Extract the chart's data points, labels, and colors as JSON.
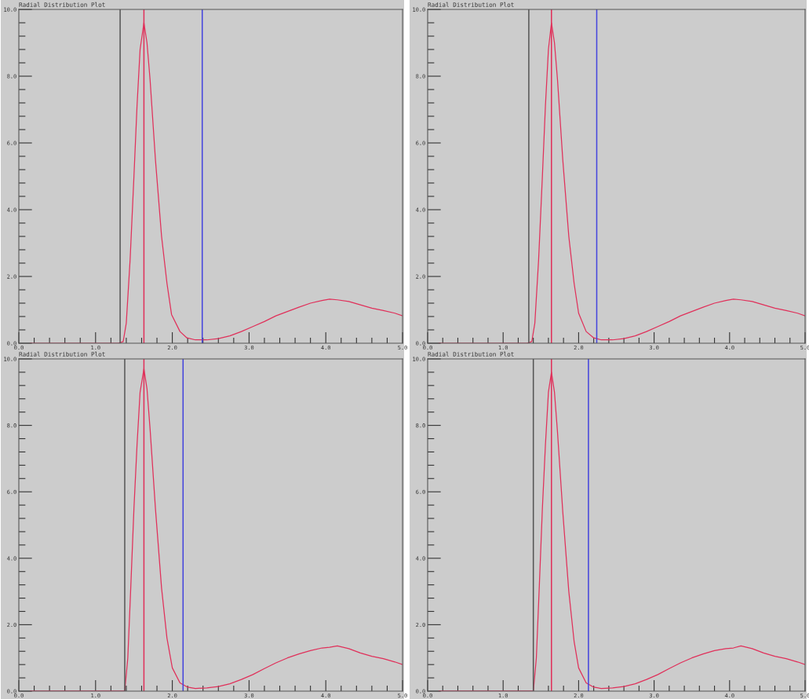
{
  "chart_data": [
    {
      "type": "line",
      "title": "Radial Distribution Plot",
      "xlim": [
        0,
        5
      ],
      "ylim": [
        0,
        10
      ],
      "grid": false,
      "marker": "none",
      "line_style": "solid",
      "xticks": [
        {
          "value": 0,
          "label": "0.0"
        },
        {
          "value": 0.2,
          "label": null
        },
        {
          "value": 0.4,
          "label": null
        },
        {
          "value": 0.6,
          "label": null
        },
        {
          "value": 0.8,
          "label": null
        },
        {
          "value": 1,
          "label": "1.0"
        },
        {
          "value": 1.2,
          "label": null
        },
        {
          "value": 1.4,
          "label": null
        },
        {
          "value": 1.6,
          "label": null
        },
        {
          "value": 1.8,
          "label": null
        },
        {
          "value": 2,
          "label": "2.0"
        },
        {
          "value": 2.2,
          "label": null
        },
        {
          "value": 2.4,
          "label": null
        },
        {
          "value": 2.6,
          "label": null
        },
        {
          "value": 2.8,
          "label": null
        },
        {
          "value": 3,
          "label": "3.0"
        },
        {
          "value": 3.2,
          "label": null
        },
        {
          "value": 3.4,
          "label": null
        },
        {
          "value": 3.6,
          "label": null
        },
        {
          "value": 3.8,
          "label": null
        },
        {
          "value": 4,
          "label": "4.0"
        },
        {
          "value": 4.2,
          "label": null
        },
        {
          "value": 4.4,
          "label": null
        },
        {
          "value": 4.6,
          "label": null
        },
        {
          "value": 4.8,
          "label": null
        },
        {
          "value": 5,
          "label": "5.0"
        }
      ],
      "yticks": [
        {
          "value": 0,
          "label": "0.0"
        },
        {
          "value": 0.4,
          "label": null
        },
        {
          "value": 0.8,
          "label": null
        },
        {
          "value": 1.2,
          "label": null
        },
        {
          "value": 1.6,
          "label": null
        },
        {
          "value": 2,
          "label": "2.0"
        },
        {
          "value": 2.4,
          "label": null
        },
        {
          "value": 2.8,
          "label": null
        },
        {
          "value": 3.2,
          "label": null
        },
        {
          "value": 3.6,
          "label": null
        },
        {
          "value": 4,
          "label": "4.0"
        },
        {
          "value": 4.4,
          "label": null
        },
        {
          "value": 4.8,
          "label": null
        },
        {
          "value": 5.2,
          "label": null
        },
        {
          "value": 5.6,
          "label": null
        },
        {
          "value": 6,
          "label": "6.0"
        },
        {
          "value": 6.4,
          "label": null
        },
        {
          "value": 6.8,
          "label": null
        },
        {
          "value": 7.2,
          "label": null
        },
        {
          "value": 7.6,
          "label": null
        },
        {
          "value": 8,
          "label": "8.0"
        },
        {
          "value": 8.4,
          "label": null
        },
        {
          "value": 8.8,
          "label": null
        },
        {
          "value": 9.2,
          "label": null
        },
        {
          "value": 9.6,
          "label": null
        },
        {
          "value": 10,
          "label": "10.0"
        }
      ],
      "ref_lines": [
        {
          "axis": "x",
          "value": 1.32,
          "color": "#555555"
        },
        {
          "axis": "x",
          "value": 1.63,
          "color": "#e0305a"
        },
        {
          "axis": "x",
          "value": 2.39,
          "color": "#4444dd"
        }
      ],
      "series": [
        {
          "color": "#e0305a",
          "x": [
            0.15,
            1.3,
            1.36,
            1.4,
            1.45,
            1.5,
            1.54,
            1.58,
            1.63,
            1.67,
            1.71,
            1.78,
            1.86,
            1.93,
            1.99,
            2.1,
            2.19,
            2.3,
            2.45,
            2.6,
            2.75,
            2.9,
            3.05,
            3.2,
            3.35,
            3.5,
            3.65,
            3.8,
            3.95,
            4.05,
            4.15,
            4.3,
            4.45,
            4.6,
            4.75,
            4.9,
            5.0
          ],
          "values": [
            0,
            0,
            0.05,
            0.6,
            2.5,
            5.0,
            7.1,
            8.8,
            9.6,
            9.0,
            7.9,
            5.5,
            3.2,
            1.8,
            0.86,
            0.35,
            0.16,
            0.1,
            0.1,
            0.14,
            0.22,
            0.35,
            0.5,
            0.65,
            0.82,
            0.95,
            1.08,
            1.2,
            1.28,
            1.32,
            1.3,
            1.25,
            1.15,
            1.05,
            0.98,
            0.9,
            0.82
          ]
        }
      ]
    },
    {
      "type": "line",
      "title": "Radial Distribution Plot",
      "xlim": [
        0,
        5
      ],
      "ylim": [
        0,
        10
      ],
      "grid": false,
      "marker": "none",
      "line_style": "solid",
      "xticks": [
        {
          "value": 0,
          "label": "0.0"
        },
        {
          "value": 0.2,
          "label": null
        },
        {
          "value": 0.4,
          "label": null
        },
        {
          "value": 0.6,
          "label": null
        },
        {
          "value": 0.8,
          "label": null
        },
        {
          "value": 1,
          "label": "1.0"
        },
        {
          "value": 1.2,
          "label": null
        },
        {
          "value": 1.4,
          "label": null
        },
        {
          "value": 1.6,
          "label": null
        },
        {
          "value": 1.8,
          "label": null
        },
        {
          "value": 2,
          "label": "2.0"
        },
        {
          "value": 2.2,
          "label": null
        },
        {
          "value": 2.4,
          "label": null
        },
        {
          "value": 2.6,
          "label": null
        },
        {
          "value": 2.8,
          "label": null
        },
        {
          "value": 3,
          "label": "3.0"
        },
        {
          "value": 3.2,
          "label": null
        },
        {
          "value": 3.4,
          "label": null
        },
        {
          "value": 3.6,
          "label": null
        },
        {
          "value": 3.8,
          "label": null
        },
        {
          "value": 4,
          "label": "4.0"
        },
        {
          "value": 4.2,
          "label": null
        },
        {
          "value": 4.4,
          "label": null
        },
        {
          "value": 4.6,
          "label": null
        },
        {
          "value": 4.8,
          "label": null
        },
        {
          "value": 5,
          "label": "5.0"
        }
      ],
      "yticks": [
        {
          "value": 0,
          "label": "0.0"
        },
        {
          "value": 0.4,
          "label": null
        },
        {
          "value": 0.8,
          "label": null
        },
        {
          "value": 1.2,
          "label": null
        },
        {
          "value": 1.6,
          "label": null
        },
        {
          "value": 2,
          "label": "2.0"
        },
        {
          "value": 2.4,
          "label": null
        },
        {
          "value": 2.8,
          "label": null
        },
        {
          "value": 3.2,
          "label": null
        },
        {
          "value": 3.6,
          "label": null
        },
        {
          "value": 4,
          "label": "4.0"
        },
        {
          "value": 4.4,
          "label": null
        },
        {
          "value": 4.8,
          "label": null
        },
        {
          "value": 5.2,
          "label": null
        },
        {
          "value": 5.6,
          "label": null
        },
        {
          "value": 6,
          "label": "6.0"
        },
        {
          "value": 6.4,
          "label": null
        },
        {
          "value": 6.8,
          "label": null
        },
        {
          "value": 7.2,
          "label": null
        },
        {
          "value": 7.6,
          "label": null
        },
        {
          "value": 8,
          "label": "8.0"
        },
        {
          "value": 8.4,
          "label": null
        },
        {
          "value": 8.8,
          "label": null
        },
        {
          "value": 9.2,
          "label": null
        },
        {
          "value": 9.6,
          "label": null
        },
        {
          "value": 10,
          "label": "10.0"
        }
      ],
      "ref_lines": [
        {
          "axis": "x",
          "value": 1.34,
          "color": "#555555"
        },
        {
          "axis": "x",
          "value": 1.64,
          "color": "#e0305a"
        },
        {
          "axis": "x",
          "value": 2.24,
          "color": "#4444dd"
        }
      ],
      "series": [
        {
          "color": "#e0305a",
          "x": [
            0.15,
            1.32,
            1.38,
            1.42,
            1.47,
            1.52,
            1.56,
            1.6,
            1.64,
            1.68,
            1.72,
            1.79,
            1.87,
            1.94,
            2.0,
            2.1,
            2.2,
            2.3,
            2.45,
            2.6,
            2.75,
            2.9,
            3.05,
            3.2,
            3.35,
            3.5,
            3.65,
            3.8,
            3.95,
            4.05,
            4.15,
            4.3,
            4.45,
            4.6,
            4.75,
            4.9,
            5.0
          ],
          "values": [
            0,
            0,
            0.05,
            0.6,
            2.5,
            5.0,
            7.1,
            8.8,
            9.6,
            9.0,
            7.9,
            5.5,
            3.2,
            1.8,
            0.9,
            0.35,
            0.16,
            0.1,
            0.1,
            0.14,
            0.22,
            0.35,
            0.5,
            0.65,
            0.82,
            0.95,
            1.08,
            1.2,
            1.28,
            1.32,
            1.3,
            1.25,
            1.15,
            1.05,
            0.98,
            0.9,
            0.82
          ]
        }
      ]
    },
    {
      "type": "line",
      "title": "Radial Distribution Plot",
      "xlim": [
        0,
        5
      ],
      "ylim": [
        0,
        10
      ],
      "grid": false,
      "marker": "none",
      "line_style": "solid",
      "xticks": [
        {
          "value": 0,
          "label": "0.0"
        },
        {
          "value": 0.2,
          "label": null
        },
        {
          "value": 0.4,
          "label": null
        },
        {
          "value": 0.6,
          "label": null
        },
        {
          "value": 0.8,
          "label": null
        },
        {
          "value": 1,
          "label": "1.0"
        },
        {
          "value": 1.2,
          "label": null
        },
        {
          "value": 1.4,
          "label": null
        },
        {
          "value": 1.6,
          "label": null
        },
        {
          "value": 1.8,
          "label": null
        },
        {
          "value": 2,
          "label": "2.0"
        },
        {
          "value": 2.2,
          "label": null
        },
        {
          "value": 2.4,
          "label": null
        },
        {
          "value": 2.6,
          "label": null
        },
        {
          "value": 2.8,
          "label": null
        },
        {
          "value": 3,
          "label": "3.0"
        },
        {
          "value": 3.2,
          "label": null
        },
        {
          "value": 3.4,
          "label": null
        },
        {
          "value": 3.6,
          "label": null
        },
        {
          "value": 3.8,
          "label": null
        },
        {
          "value": 4,
          "label": "4.0"
        },
        {
          "value": 4.2,
          "label": null
        },
        {
          "value": 4.4,
          "label": null
        },
        {
          "value": 4.6,
          "label": null
        },
        {
          "value": 4.8,
          "label": null
        },
        {
          "value": 5,
          "label": "5.0"
        }
      ],
      "yticks": [
        {
          "value": 0,
          "label": "0.0"
        },
        {
          "value": 0.4,
          "label": null
        },
        {
          "value": 0.8,
          "label": null
        },
        {
          "value": 1.2,
          "label": null
        },
        {
          "value": 1.6,
          "label": null
        },
        {
          "value": 2,
          "label": "2.0"
        },
        {
          "value": 2.4,
          "label": null
        },
        {
          "value": 2.8,
          "label": null
        },
        {
          "value": 3.2,
          "label": null
        },
        {
          "value": 3.6,
          "label": null
        },
        {
          "value": 4,
          "label": "4.0"
        },
        {
          "value": 4.4,
          "label": null
        },
        {
          "value": 4.8,
          "label": null
        },
        {
          "value": 5.2,
          "label": null
        },
        {
          "value": 5.6,
          "label": null
        },
        {
          "value": 6,
          "label": "6.0"
        },
        {
          "value": 6.4,
          "label": null
        },
        {
          "value": 6.8,
          "label": null
        },
        {
          "value": 7.2,
          "label": null
        },
        {
          "value": 7.6,
          "label": null
        },
        {
          "value": 8,
          "label": "8.0"
        },
        {
          "value": 8.4,
          "label": null
        },
        {
          "value": 8.8,
          "label": null
        },
        {
          "value": 9.2,
          "label": null
        },
        {
          "value": 9.6,
          "label": null
        },
        {
          "value": 10,
          "label": "10.0"
        }
      ],
      "ref_lines": [
        {
          "axis": "x",
          "value": 1.38,
          "color": "#555555"
        },
        {
          "axis": "x",
          "value": 1.63,
          "color": "#e0305a"
        },
        {
          "axis": "x",
          "value": 2.14,
          "color": "#4444dd"
        }
      ],
      "series": [
        {
          "color": "#e0305a",
          "x": [
            0.15,
            1.38,
            1.42,
            1.46,
            1.5,
            1.54,
            1.58,
            1.63,
            1.67,
            1.71,
            1.78,
            1.86,
            1.93,
            2.0,
            2.1,
            2.2,
            2.3,
            2.45,
            2.6,
            2.75,
            2.9,
            3.05,
            3.2,
            3.35,
            3.5,
            3.65,
            3.8,
            3.95,
            4.05,
            4.15,
            4.3,
            4.45,
            4.6,
            4.75,
            4.9,
            5.0
          ],
          "values": [
            0,
            0,
            1.0,
            3.2,
            5.5,
            7.4,
            9.0,
            9.7,
            9.1,
            7.9,
            5.5,
            3.1,
            1.6,
            0.7,
            0.25,
            0.12,
            0.08,
            0.1,
            0.14,
            0.22,
            0.35,
            0.5,
            0.68,
            0.85,
            1.0,
            1.12,
            1.22,
            1.3,
            1.32,
            1.36,
            1.28,
            1.15,
            1.05,
            0.98,
            0.88,
            0.8
          ]
        }
      ]
    },
    {
      "type": "line",
      "title": "Radial Distribution Plot",
      "xlim": [
        0,
        5
      ],
      "ylim": [
        0,
        10
      ],
      "grid": false,
      "marker": "none",
      "line_style": "solid",
      "xticks": [
        {
          "value": 0,
          "label": "0.0"
        },
        {
          "value": 0.2,
          "label": null
        },
        {
          "value": 0.4,
          "label": null
        },
        {
          "value": 0.6,
          "label": null
        },
        {
          "value": 0.8,
          "label": null
        },
        {
          "value": 1,
          "label": "1.0"
        },
        {
          "value": 1.2,
          "label": null
        },
        {
          "value": 1.4,
          "label": null
        },
        {
          "value": 1.6,
          "label": null
        },
        {
          "value": 1.8,
          "label": null
        },
        {
          "value": 2,
          "label": "2.0"
        },
        {
          "value": 2.2,
          "label": null
        },
        {
          "value": 2.4,
          "label": null
        },
        {
          "value": 2.6,
          "label": null
        },
        {
          "value": 2.8,
          "label": null
        },
        {
          "value": 3,
          "label": "3.0"
        },
        {
          "value": 3.2,
          "label": null
        },
        {
          "value": 3.4,
          "label": null
        },
        {
          "value": 3.6,
          "label": null
        },
        {
          "value": 3.8,
          "label": null
        },
        {
          "value": 4,
          "label": "4.0"
        },
        {
          "value": 4.2,
          "label": null
        },
        {
          "value": 4.4,
          "label": null
        },
        {
          "value": 4.6,
          "label": null
        },
        {
          "value": 4.8,
          "label": null
        },
        {
          "value": 5,
          "label": "5.0"
        }
      ],
      "yticks": [
        {
          "value": 0,
          "label": "0.0"
        },
        {
          "value": 0.4,
          "label": null
        },
        {
          "value": 0.8,
          "label": null
        },
        {
          "value": 1.2,
          "label": null
        },
        {
          "value": 1.6,
          "label": null
        },
        {
          "value": 2,
          "label": "2.0"
        },
        {
          "value": 2.4,
          "label": null
        },
        {
          "value": 2.8,
          "label": null
        },
        {
          "value": 3.2,
          "label": null
        },
        {
          "value": 3.6,
          "label": null
        },
        {
          "value": 4,
          "label": "4.0"
        },
        {
          "value": 4.4,
          "label": null
        },
        {
          "value": 4.8,
          "label": null
        },
        {
          "value": 5.2,
          "label": null
        },
        {
          "value": 5.6,
          "label": null
        },
        {
          "value": 6,
          "label": "6.0"
        },
        {
          "value": 6.4,
          "label": null
        },
        {
          "value": 6.8,
          "label": null
        },
        {
          "value": 7.2,
          "label": null
        },
        {
          "value": 7.6,
          "label": null
        },
        {
          "value": 8,
          "label": "8.0"
        },
        {
          "value": 8.4,
          "label": null
        },
        {
          "value": 8.8,
          "label": null
        },
        {
          "value": 9.2,
          "label": null
        },
        {
          "value": 9.6,
          "label": null
        },
        {
          "value": 10,
          "label": "10.0"
        }
      ],
      "ref_lines": [
        {
          "axis": "x",
          "value": 1.4,
          "color": "#555555"
        },
        {
          "axis": "x",
          "value": 1.64,
          "color": "#e0305a"
        },
        {
          "axis": "x",
          "value": 2.13,
          "color": "#4444dd"
        }
      ],
      "series": [
        {
          "color": "#e0305a",
          "x": [
            0.15,
            1.4,
            1.44,
            1.48,
            1.52,
            1.56,
            1.6,
            1.64,
            1.68,
            1.72,
            1.79,
            1.87,
            1.94,
            2.0,
            2.1,
            2.2,
            2.3,
            2.45,
            2.6,
            2.75,
            2.9,
            3.05,
            3.2,
            3.35,
            3.5,
            3.65,
            3.8,
            3.95,
            4.05,
            4.15,
            4.3,
            4.45,
            4.6,
            4.75,
            4.9,
            5.0
          ],
          "values": [
            0,
            0,
            1.0,
            3.2,
            5.5,
            7.4,
            9.0,
            9.6,
            9.0,
            7.8,
            5.4,
            3.0,
            1.5,
            0.7,
            0.25,
            0.12,
            0.08,
            0.1,
            0.14,
            0.22,
            0.35,
            0.5,
            0.68,
            0.85,
            1.0,
            1.12,
            1.22,
            1.28,
            1.3,
            1.36,
            1.28,
            1.15,
            1.05,
            0.98,
            0.88,
            0.8
          ]
        }
      ]
    }
  ]
}
